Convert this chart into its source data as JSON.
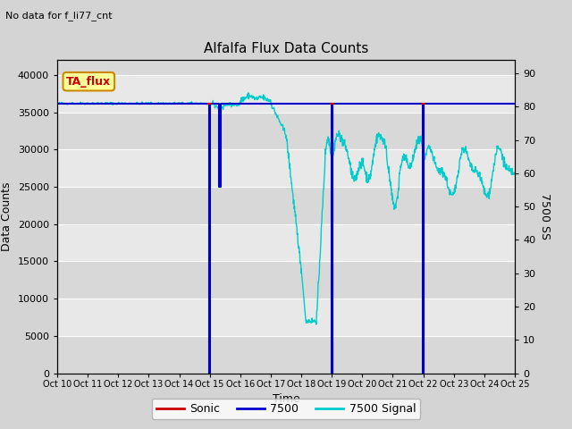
{
  "title": "Alfalfa Flux Data Counts",
  "subtitle": "No data for f_li77_cnt",
  "xlabel": "Time",
  "ylabel_left": "Data Counts",
  "ylabel_right": "7500 SS",
  "xlim": [
    0,
    15
  ],
  "ylim_left": [
    0,
    42000
  ],
  "ylim_right": [
    0,
    94
  ],
  "xtick_positions": [
    0,
    1,
    2,
    3,
    4,
    5,
    6,
    7,
    8,
    9,
    10,
    11,
    12,
    13,
    14,
    15
  ],
  "xtick_labels": [
    "Oct 10",
    "Oct 11",
    "Oct 12",
    "Oct 13",
    "Oct 14",
    "Oct 15",
    "Oct 16",
    "Oct 17",
    "Oct 18",
    "Oct 19",
    "Oct 20",
    "Oct 21",
    "Oct 22",
    "Oct 23",
    "Oct 24",
    "Oct 25"
  ],
  "ytick_left": [
    0,
    5000,
    10000,
    15000,
    20000,
    25000,
    30000,
    35000,
    40000
  ],
  "ytick_right": [
    0,
    10,
    20,
    30,
    40,
    50,
    60,
    70,
    80,
    90
  ],
  "fig_bg_color": "#d4d4d4",
  "plot_bg_color_light": "#e8e8e8",
  "plot_bg_color_dark": "#d8d8d8",
  "grid_color": "#ffffff",
  "sonic_color": "#cc0000",
  "s7500_color": "#0000cc",
  "s7500signal_color": "#00cccc",
  "ta_flux_box_color": "#ffff99",
  "ta_flux_box_border": "#cc8800",
  "ta_flux_text": "TA_flux",
  "legend_entries": [
    "Sonic",
    "7500",
    "7500 Signal"
  ],
  "flat_value": 36200,
  "signal_flat": 36200
}
